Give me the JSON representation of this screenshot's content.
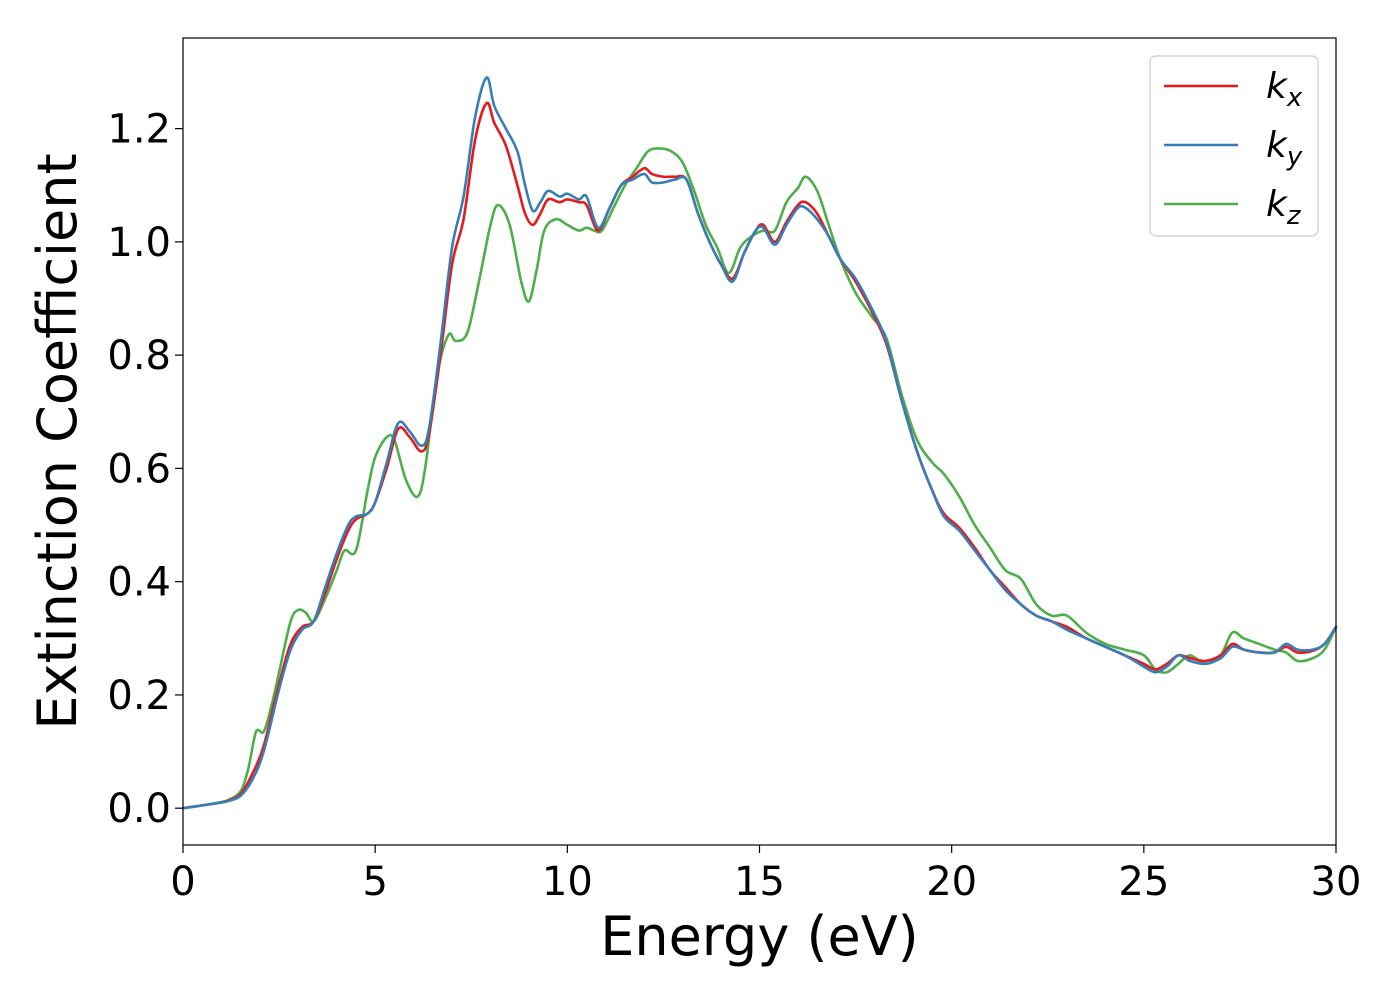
{
  "chart_data": {
    "type": "line",
    "title": "",
    "xlabel": "Energy (eV)",
    "ylabel": "Extinction Coefficient",
    "xlim": [
      0,
      30
    ],
    "ylim": [
      -0.065,
      1.36
    ],
    "xticks": [
      0,
      5,
      10,
      15,
      20,
      25,
      30
    ],
    "yticks": [
      0.0,
      0.2,
      0.4,
      0.6,
      0.8,
      1.0,
      1.2
    ],
    "grid": false,
    "legend_position": "top-right",
    "series": [
      {
        "name": "k_x",
        "label_base": "k",
        "label_sub": "x",
        "color": "#e41a1c",
        "x": [
          0,
          0.5,
          1,
          1.2,
          1.5,
          1.8,
          2.1,
          2.5,
          2.8,
          3.1,
          3.4,
          3.7,
          4.0,
          4.3,
          4.5,
          4.8,
          5.0,
          5.3,
          5.6,
          5.9,
          6.2,
          6.4,
          6.7,
          7.0,
          7.3,
          7.6,
          7.9,
          8.1,
          8.4,
          8.7,
          8.9,
          9.1,
          9.3,
          9.5,
          9.8,
          10.0,
          10.3,
          10.5,
          10.8,
          11.1,
          11.4,
          11.7,
          12.0,
          12.2,
          12.5,
          12.8,
          13.1,
          13.4,
          13.7,
          14.0,
          14.3,
          14.6,
          14.9,
          15.1,
          15.4,
          15.7,
          16.0,
          16.2,
          16.5,
          16.8,
          17.1,
          17.5,
          17.9,
          18.3,
          18.7,
          19.1,
          19.5,
          19.8,
          20.2,
          20.6,
          21.0,
          21.4,
          21.8,
          22.2,
          22.6,
          23.0,
          23.5,
          24.0,
          24.5,
          25.0,
          25.3,
          25.6,
          25.9,
          26.2,
          26.6,
          27.0,
          27.3,
          27.6,
          28.0,
          28.4,
          28.7,
          29.0,
          29.4,
          29.7,
          30.0
        ],
        "y": [
          0.0,
          0.005,
          0.01,
          0.014,
          0.025,
          0.06,
          0.11,
          0.22,
          0.29,
          0.32,
          0.33,
          0.38,
          0.44,
          0.49,
          0.51,
          0.52,
          0.54,
          0.6,
          0.67,
          0.655,
          0.63,
          0.66,
          0.8,
          0.96,
          1.04,
          1.18,
          1.245,
          1.21,
          1.17,
          1.1,
          1.05,
          1.03,
          1.05,
          1.075,
          1.07,
          1.075,
          1.07,
          1.065,
          1.02,
          1.06,
          1.1,
          1.115,
          1.13,
          1.12,
          1.115,
          1.115,
          1.11,
          1.05,
          1.0,
          0.96,
          0.935,
          0.98,
          1.02,
          1.03,
          1.0,
          1.035,
          1.065,
          1.07,
          1.05,
          1.01,
          0.97,
          0.93,
          0.88,
          0.82,
          0.72,
          0.63,
          0.56,
          0.52,
          0.495,
          0.46,
          0.42,
          0.39,
          0.36,
          0.34,
          0.33,
          0.32,
          0.3,
          0.285,
          0.27,
          0.255,
          0.245,
          0.255,
          0.27,
          0.265,
          0.26,
          0.27,
          0.29,
          0.28,
          0.275,
          0.275,
          0.285,
          0.275,
          0.278,
          0.29,
          0.32
        ]
      },
      {
        "name": "k_y",
        "label_base": "k",
        "label_sub": "y",
        "color": "#377eb8",
        "x": [
          0,
          0.5,
          1,
          1.2,
          1.5,
          1.8,
          2.1,
          2.5,
          2.8,
          3.1,
          3.4,
          3.7,
          4.0,
          4.3,
          4.5,
          4.8,
          5.0,
          5.3,
          5.6,
          5.9,
          6.2,
          6.4,
          6.7,
          7.0,
          7.3,
          7.6,
          7.9,
          8.1,
          8.4,
          8.7,
          8.9,
          9.1,
          9.3,
          9.5,
          9.8,
          10.0,
          10.3,
          10.5,
          10.8,
          11.1,
          11.4,
          11.7,
          12.0,
          12.2,
          12.5,
          12.8,
          13.1,
          13.4,
          13.7,
          14.0,
          14.3,
          14.6,
          14.9,
          15.1,
          15.4,
          15.7,
          16.0,
          16.2,
          16.5,
          16.8,
          17.1,
          17.5,
          17.9,
          18.3,
          18.7,
          19.1,
          19.5,
          19.8,
          20.2,
          20.6,
          21.0,
          21.4,
          21.8,
          22.2,
          22.6,
          23.0,
          23.5,
          24.0,
          24.5,
          25.0,
          25.3,
          25.6,
          25.9,
          26.2,
          26.6,
          27.0,
          27.3,
          27.6,
          28.0,
          28.4,
          28.7,
          29.0,
          29.4,
          29.7,
          30.0
        ],
        "y": [
          0.0,
          0.005,
          0.01,
          0.013,
          0.022,
          0.05,
          0.1,
          0.21,
          0.28,
          0.315,
          0.33,
          0.39,
          0.45,
          0.5,
          0.515,
          0.52,
          0.54,
          0.61,
          0.68,
          0.665,
          0.64,
          0.67,
          0.82,
          0.99,
          1.08,
          1.22,
          1.29,
          1.24,
          1.2,
          1.16,
          1.1,
          1.055,
          1.07,
          1.09,
          1.08,
          1.085,
          1.075,
          1.08,
          1.025,
          1.06,
          1.1,
          1.11,
          1.12,
          1.105,
          1.105,
          1.11,
          1.11,
          1.05,
          1.0,
          0.96,
          0.93,
          0.98,
          1.02,
          1.025,
          0.995,
          1.03,
          1.06,
          1.06,
          1.04,
          1.01,
          0.97,
          0.935,
          0.885,
          0.825,
          0.72,
          0.63,
          0.56,
          0.515,
          0.49,
          0.455,
          0.42,
          0.385,
          0.36,
          0.34,
          0.33,
          0.315,
          0.3,
          0.285,
          0.27,
          0.25,
          0.24,
          0.25,
          0.27,
          0.26,
          0.255,
          0.265,
          0.285,
          0.28,
          0.275,
          0.275,
          0.29,
          0.28,
          0.28,
          0.29,
          0.32
        ]
      },
      {
        "name": "k_z",
        "label_base": "k",
        "label_sub": "z",
        "color": "#4daf4a",
        "x": [
          0,
          0.5,
          1,
          1.2,
          1.5,
          1.7,
          1.9,
          2.1,
          2.3,
          2.5,
          2.8,
          3.0,
          3.2,
          3.4,
          3.7,
          4.0,
          4.2,
          4.5,
          4.8,
          5.0,
          5.3,
          5.5,
          5.8,
          6.1,
          6.3,
          6.6,
          6.9,
          7.1,
          7.4,
          7.7,
          8.0,
          8.2,
          8.5,
          8.8,
          9.0,
          9.2,
          9.4,
          9.7,
          10.0,
          10.3,
          10.5,
          10.7,
          10.9,
          11.2,
          11.5,
          11.8,
          12.1,
          12.4,
          12.7,
          13.0,
          13.3,
          13.6,
          13.9,
          14.2,
          14.5,
          14.8,
          15.1,
          15.4,
          15.7,
          16.0,
          16.2,
          16.5,
          16.8,
          17.1,
          17.5,
          17.9,
          18.3,
          18.7,
          19.1,
          19.5,
          19.8,
          20.2,
          20.6,
          21.0,
          21.4,
          21.8,
          22.2,
          22.6,
          23.0,
          23.5,
          24.0,
          24.5,
          25.0,
          25.3,
          25.6,
          25.9,
          26.2,
          26.6,
          27.0,
          27.3,
          27.6,
          28.0,
          28.4,
          28.7,
          29.0,
          29.4,
          29.7,
          30.0
        ],
        "y": [
          0.0,
          0.005,
          0.011,
          0.015,
          0.03,
          0.07,
          0.135,
          0.135,
          0.18,
          0.24,
          0.33,
          0.35,
          0.345,
          0.33,
          0.37,
          0.42,
          0.455,
          0.455,
          0.56,
          0.62,
          0.655,
          0.65,
          0.58,
          0.55,
          0.6,
          0.76,
          0.835,
          0.825,
          0.84,
          0.93,
          1.03,
          1.065,
          1.03,
          0.93,
          0.895,
          0.95,
          1.02,
          1.04,
          1.03,
          1.02,
          1.025,
          1.02,
          1.02,
          1.06,
          1.1,
          1.13,
          1.16,
          1.165,
          1.16,
          1.14,
          1.09,
          1.03,
          0.99,
          0.945,
          0.99,
          1.01,
          1.02,
          1.02,
          1.07,
          1.095,
          1.115,
          1.09,
          1.03,
          0.97,
          0.91,
          0.87,
          0.83,
          0.73,
          0.65,
          0.61,
          0.59,
          0.55,
          0.5,
          0.46,
          0.42,
          0.405,
          0.36,
          0.34,
          0.34,
          0.31,
          0.29,
          0.28,
          0.27,
          0.245,
          0.24,
          0.255,
          0.27,
          0.255,
          0.27,
          0.31,
          0.3,
          0.29,
          0.28,
          0.275,
          0.26,
          0.265,
          0.28,
          0.32
        ]
      }
    ]
  }
}
